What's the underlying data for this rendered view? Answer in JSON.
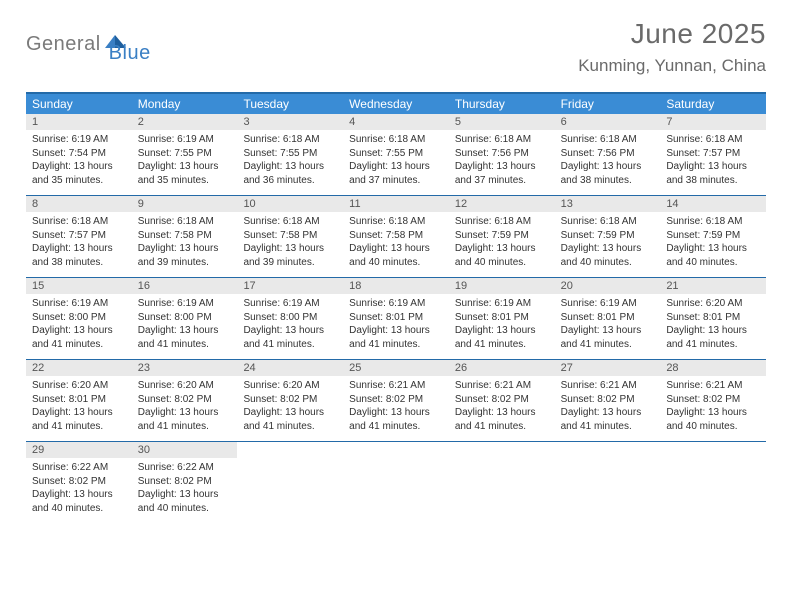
{
  "logo": {
    "part1": "General",
    "part2": "Blue",
    "accent_color": "#3a7fc4",
    "gray": "#7a7a7a"
  },
  "title": "June 2025",
  "location": "Kunming, Yunnan, China",
  "colors": {
    "header_bar": "#3a8cd5",
    "rule": "#236aa8",
    "daynum_bg": "#e9e9e9",
    "text": "#333333",
    "title_text": "#6a6a6a"
  },
  "weekdays": [
    "Sunday",
    "Monday",
    "Tuesday",
    "Wednesday",
    "Thursday",
    "Friday",
    "Saturday"
  ],
  "weeks": [
    [
      {
        "n": "1",
        "sr": "6:19 AM",
        "ss": "7:54 PM",
        "dl": "13 hours and 35 minutes."
      },
      {
        "n": "2",
        "sr": "6:19 AM",
        "ss": "7:55 PM",
        "dl": "13 hours and 35 minutes."
      },
      {
        "n": "3",
        "sr": "6:18 AM",
        "ss": "7:55 PM",
        "dl": "13 hours and 36 minutes."
      },
      {
        "n": "4",
        "sr": "6:18 AM",
        "ss": "7:55 PM",
        "dl": "13 hours and 37 minutes."
      },
      {
        "n": "5",
        "sr": "6:18 AM",
        "ss": "7:56 PM",
        "dl": "13 hours and 37 minutes."
      },
      {
        "n": "6",
        "sr": "6:18 AM",
        "ss": "7:56 PM",
        "dl": "13 hours and 38 minutes."
      },
      {
        "n": "7",
        "sr": "6:18 AM",
        "ss": "7:57 PM",
        "dl": "13 hours and 38 minutes."
      }
    ],
    [
      {
        "n": "8",
        "sr": "6:18 AM",
        "ss": "7:57 PM",
        "dl": "13 hours and 38 minutes."
      },
      {
        "n": "9",
        "sr": "6:18 AM",
        "ss": "7:58 PM",
        "dl": "13 hours and 39 minutes."
      },
      {
        "n": "10",
        "sr": "6:18 AM",
        "ss": "7:58 PM",
        "dl": "13 hours and 39 minutes."
      },
      {
        "n": "11",
        "sr": "6:18 AM",
        "ss": "7:58 PM",
        "dl": "13 hours and 40 minutes."
      },
      {
        "n": "12",
        "sr": "6:18 AM",
        "ss": "7:59 PM",
        "dl": "13 hours and 40 minutes."
      },
      {
        "n": "13",
        "sr": "6:18 AM",
        "ss": "7:59 PM",
        "dl": "13 hours and 40 minutes."
      },
      {
        "n": "14",
        "sr": "6:18 AM",
        "ss": "7:59 PM",
        "dl": "13 hours and 40 minutes."
      }
    ],
    [
      {
        "n": "15",
        "sr": "6:19 AM",
        "ss": "8:00 PM",
        "dl": "13 hours and 41 minutes."
      },
      {
        "n": "16",
        "sr": "6:19 AM",
        "ss": "8:00 PM",
        "dl": "13 hours and 41 minutes."
      },
      {
        "n": "17",
        "sr": "6:19 AM",
        "ss": "8:00 PM",
        "dl": "13 hours and 41 minutes."
      },
      {
        "n": "18",
        "sr": "6:19 AM",
        "ss": "8:01 PM",
        "dl": "13 hours and 41 minutes."
      },
      {
        "n": "19",
        "sr": "6:19 AM",
        "ss": "8:01 PM",
        "dl": "13 hours and 41 minutes."
      },
      {
        "n": "20",
        "sr": "6:19 AM",
        "ss": "8:01 PM",
        "dl": "13 hours and 41 minutes."
      },
      {
        "n": "21",
        "sr": "6:20 AM",
        "ss": "8:01 PM",
        "dl": "13 hours and 41 minutes."
      }
    ],
    [
      {
        "n": "22",
        "sr": "6:20 AM",
        "ss": "8:01 PM",
        "dl": "13 hours and 41 minutes."
      },
      {
        "n": "23",
        "sr": "6:20 AM",
        "ss": "8:02 PM",
        "dl": "13 hours and 41 minutes."
      },
      {
        "n": "24",
        "sr": "6:20 AM",
        "ss": "8:02 PM",
        "dl": "13 hours and 41 minutes."
      },
      {
        "n": "25",
        "sr": "6:21 AM",
        "ss": "8:02 PM",
        "dl": "13 hours and 41 minutes."
      },
      {
        "n": "26",
        "sr": "6:21 AM",
        "ss": "8:02 PM",
        "dl": "13 hours and 41 minutes."
      },
      {
        "n": "27",
        "sr": "6:21 AM",
        "ss": "8:02 PM",
        "dl": "13 hours and 41 minutes."
      },
      {
        "n": "28",
        "sr": "6:21 AM",
        "ss": "8:02 PM",
        "dl": "13 hours and 40 minutes."
      }
    ],
    [
      {
        "n": "29",
        "sr": "6:22 AM",
        "ss": "8:02 PM",
        "dl": "13 hours and 40 minutes."
      },
      {
        "n": "30",
        "sr": "6:22 AM",
        "ss": "8:02 PM",
        "dl": "13 hours and 40 minutes."
      },
      {
        "empty": true
      },
      {
        "empty": true
      },
      {
        "empty": true
      },
      {
        "empty": true
      },
      {
        "empty": true
      }
    ]
  ],
  "labels": {
    "sunrise": "Sunrise:",
    "sunset": "Sunset:",
    "daylight": "Daylight:"
  }
}
